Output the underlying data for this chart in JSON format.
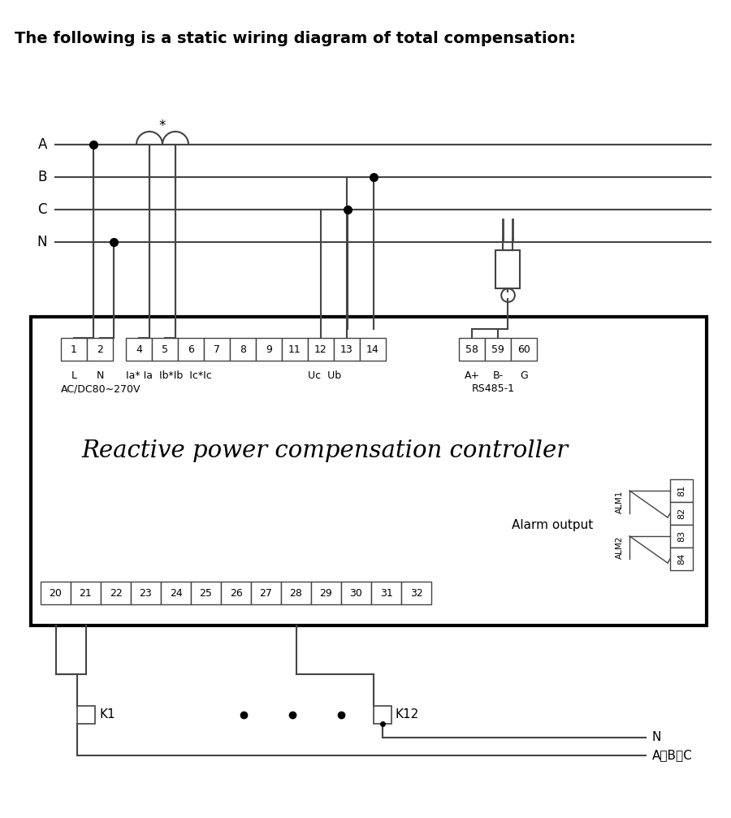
{
  "title": "The following is a static wiring diagram of total compensation:",
  "title_fontsize": 13,
  "title_fontweight": "bold",
  "bg_color": "#ffffff",
  "line_color": "#444444",
  "box_color": "#000000",
  "text_color": "#000000",
  "controller_title": "Reactive power compensation controller",
  "bus_labels": [
    "A",
    "B",
    "C",
    "N"
  ],
  "alarm_output_label": "Alarm output",
  "alm1_label": "ALM1",
  "alm2_label": "ALM2",
  "acdc_label": "AC/DC80∼270V",
  "rs485_label": "RS485-1",
  "lbl_LN": [
    "L",
    "N"
  ],
  "lbl_ia": "Ia* Ia  Ib*Ib  Ic*Ic",
  "lbl_ucub": "Uc Ub",
  "lbl_abc": "A+ B-  G",
  "lbl_N": "N",
  "lbl_AorBorC": "A或B或C",
  "lbl_K1": "K1",
  "lbl_K12": "K12",
  "term_top1": [
    "1",
    "2"
  ],
  "term_top2": [
    "4",
    "5",
    "6",
    "7",
    "8",
    "9",
    "11",
    "12",
    "13",
    "14"
  ],
  "term_top3": [
    "58",
    "59",
    "60"
  ],
  "term_bottom": [
    "20",
    "21",
    "22",
    "23",
    "24",
    "25",
    "26",
    "27",
    "28",
    "29",
    "30",
    "31",
    "32"
  ],
  "term_alarm": [
    "81",
    "82",
    "83",
    "84"
  ]
}
